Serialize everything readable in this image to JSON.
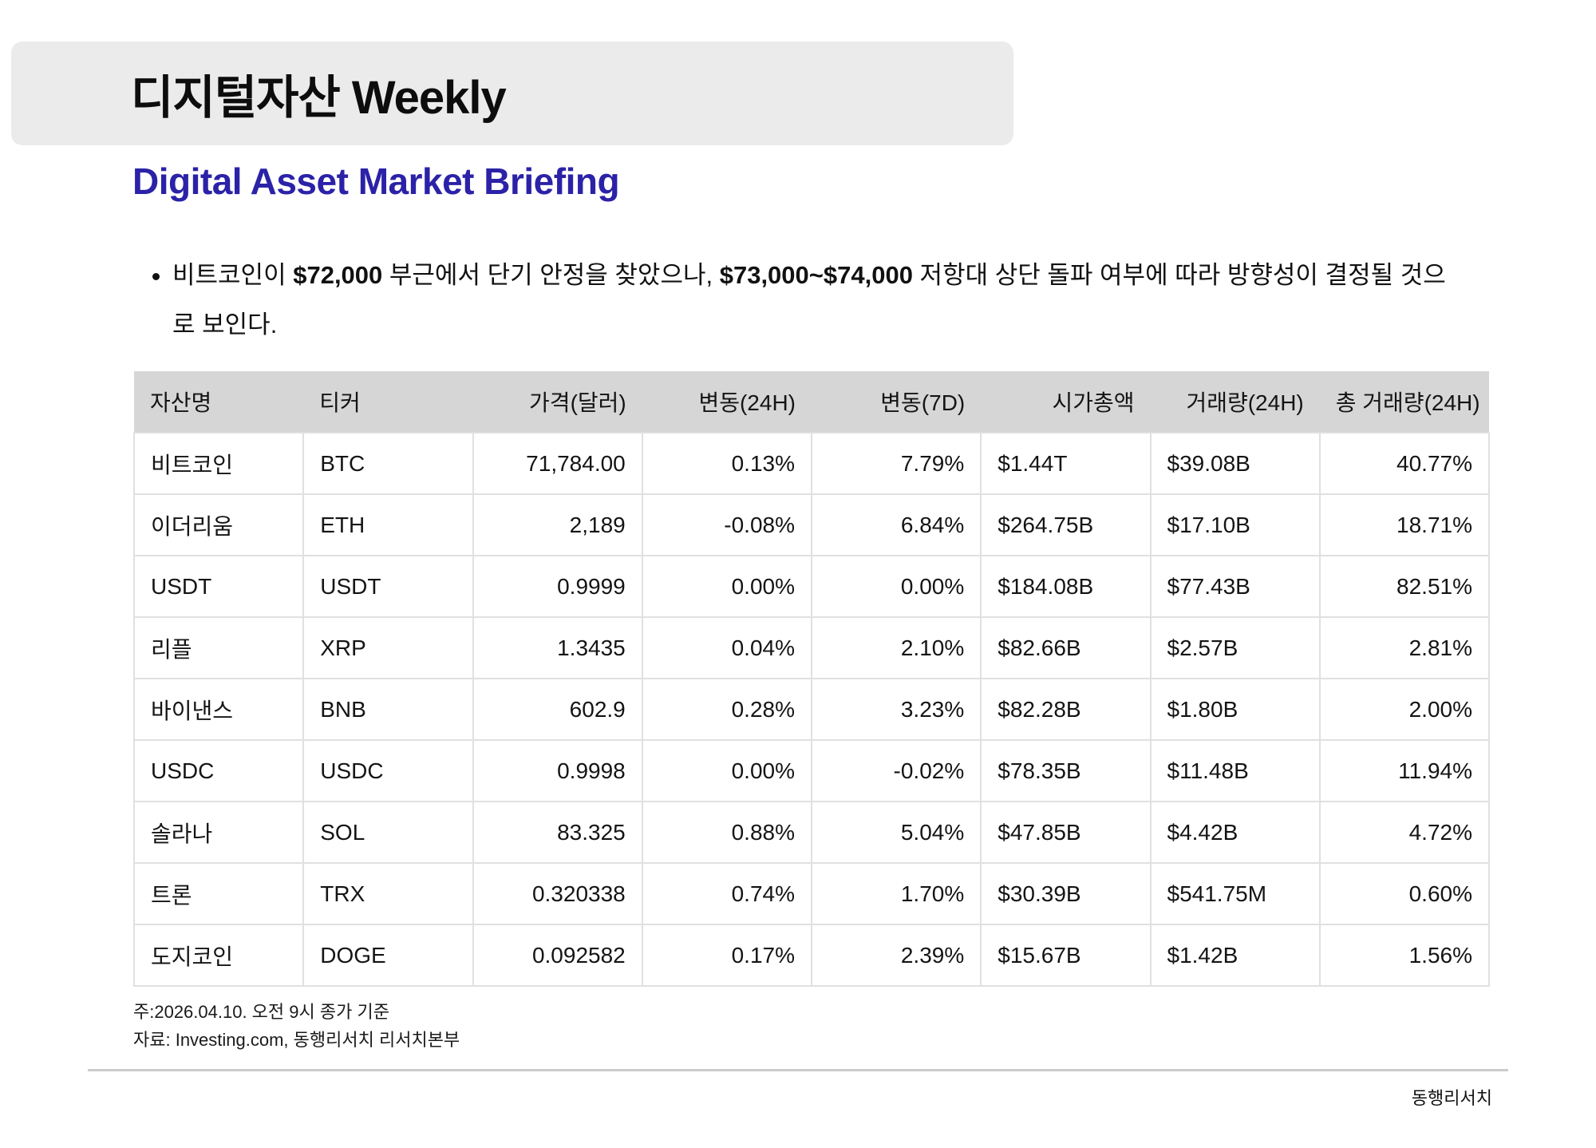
{
  "header": {
    "band_title": "디지털자산 Weekly",
    "subtitle": "Digital Asset Market Briefing"
  },
  "bullet": {
    "segments": [
      {
        "t": "비트코인이 ",
        "b": false
      },
      {
        "t": "$72,000",
        "b": true
      },
      {
        "t": " 부근에서 단기 안정을 찾았으나, ",
        "b": false
      },
      {
        "t": "$73,000~$74,000",
        "b": true
      },
      {
        "t": " 저항대 상단 돌파 여부에 따라 방향성이 결정될 것으로 보인다.",
        "b": false
      }
    ]
  },
  "table": {
    "headers": [
      "자산명",
      "티커",
      "가격(달러)",
      "변동(24H)",
      "변동(7D)",
      "시가총액",
      "거래량(24H)",
      "총 거래량(24H)"
    ],
    "header_aligns": [
      "left",
      "left",
      "right",
      "right",
      "right",
      "right",
      "right",
      "right"
    ],
    "column_aligns": [
      "left",
      "left",
      "right",
      "right",
      "right",
      "left",
      "left",
      "right"
    ],
    "rows": [
      [
        "비트코인",
        "BTC",
        "71,784.00",
        "0.13%",
        "7.79%",
        "$1.44T",
        "$39.08B",
        "40.77%"
      ],
      [
        "이더리움",
        "ETH",
        "2,189",
        "-0.08%",
        "6.84%",
        "$264.75B",
        "$17.10B",
        "18.71%"
      ],
      [
        "USDT",
        "USDT",
        "0.9999",
        "0.00%",
        "0.00%",
        "$184.08B",
        "$77.43B",
        "82.51%"
      ],
      [
        "리플",
        "XRP",
        "1.3435",
        "0.04%",
        "2.10%",
        "$82.66B",
        "$2.57B",
        "2.81%"
      ],
      [
        "바이낸스",
        "BNB",
        "602.9",
        "0.28%",
        "3.23%",
        "$82.28B",
        "$1.80B",
        "2.00%"
      ],
      [
        "USDC",
        "USDC",
        "0.9998",
        "0.00%",
        "-0.02%",
        "$78.35B",
        "$11.48B",
        "11.94%"
      ],
      [
        "솔라나",
        "SOL",
        "83.325",
        "0.88%",
        "5.04%",
        "$47.85B",
        "$4.42B",
        "4.72%"
      ],
      [
        "트론",
        "TRX",
        "0.320338",
        "0.74%",
        "1.70%",
        "$30.39B",
        "$541.75M",
        "0.60%"
      ],
      [
        "도지코인",
        "DOGE",
        "0.092582",
        "0.17%",
        "2.39%",
        "$15.67B",
        "$1.42B",
        "1.56%"
      ]
    ]
  },
  "notes": {
    "note1": "주:2026.04.10. 오전 9시 종가 기준",
    "note2": "자료: Investing.com, 동행리서치 리서치본부"
  },
  "footer": {
    "brand": "동행리서치"
  },
  "colors": {
    "subtitle_blue": "#2B22A8",
    "title_band_gray": "#EBEBEB",
    "table_header_gray": "#D6D6D6",
    "table_border_gray": "#E0E0E0",
    "footer_rule_gray": "#CBCBCB"
  }
}
